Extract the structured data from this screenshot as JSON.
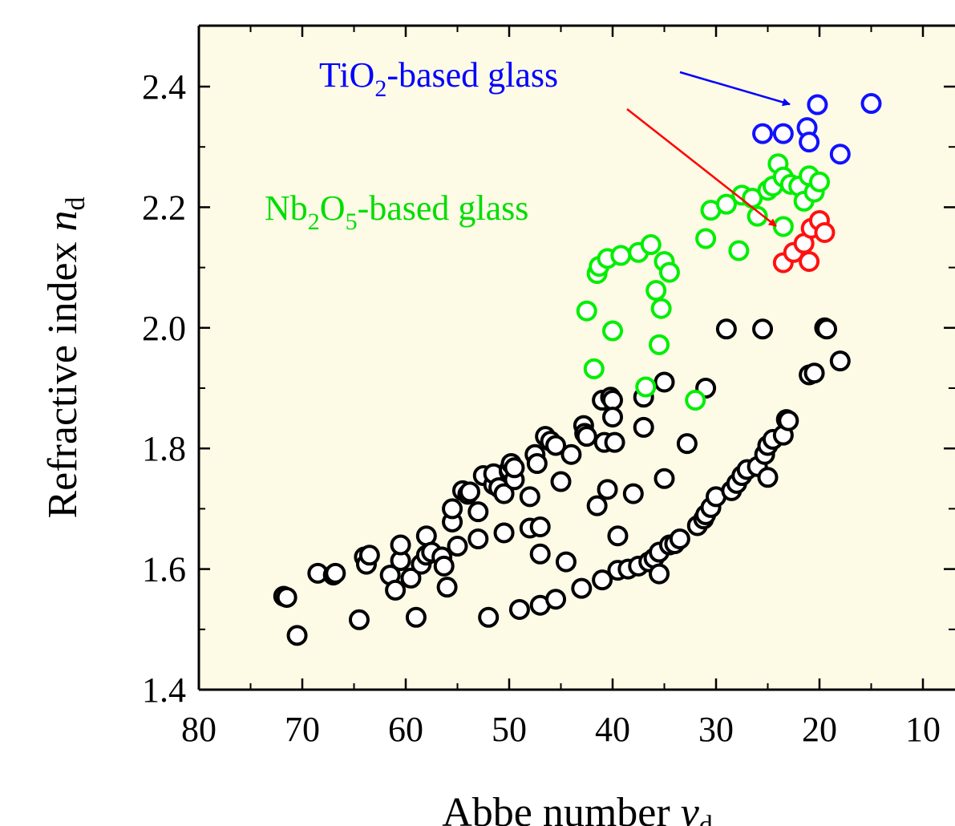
{
  "chart_data": {
    "type": "scatter",
    "title": "",
    "xlabel": {
      "main": "Abbe number ",
      "symbol": "ν",
      "sub": "d"
    },
    "ylabel": {
      "main": "Refractive index ",
      "symbol": "n",
      "sub": "d"
    },
    "xlim": [
      80,
      8
    ],
    "ylim": [
      1.4,
      2.5
    ],
    "x_reversed": true,
    "x_ticks": [
      "80",
      "70",
      "60",
      "50",
      "40",
      "30",
      "20",
      "10"
    ],
    "y_ticks": [
      "1.4",
      "1.6",
      "1.8",
      "2.0",
      "2.2",
      "2.4"
    ],
    "plot_background": "#fdfae6",
    "annotations": [
      {
        "prefix": "TiO",
        "sub": "2",
        "suffix": "-based glass",
        "color": "#0000ff"
      },
      {
        "prefix": "Nb",
        "sub": "2",
        "mid": "O",
        "sub2": "5",
        "suffix": "-based glass",
        "color": "#00dd00"
      }
    ],
    "series": [
      {
        "color": "#000000",
        "points": [
          [
            71.8,
            1.555
          ],
          [
            71.5,
            1.553
          ],
          [
            70.5,
            1.49
          ],
          [
            68.5,
            1.593
          ],
          [
            67,
            1.59
          ],
          [
            66.8,
            1.593
          ],
          [
            64.5,
            1.516
          ],
          [
            64,
            1.62
          ],
          [
            63.8,
            1.608
          ],
          [
            63.5,
            1.623
          ],
          [
            61.5,
            1.59
          ],
          [
            61,
            1.565
          ],
          [
            60.5,
            1.614
          ],
          [
            60.5,
            1.64
          ],
          [
            59.5,
            1.585
          ],
          [
            59,
            1.52
          ],
          [
            58.5,
            1.608
          ],
          [
            58,
            1.623
          ],
          [
            58,
            1.655
          ],
          [
            57.5,
            1.628
          ],
          [
            56.5,
            1.62
          ],
          [
            56.3,
            1.605
          ],
          [
            56,
            1.57
          ],
          [
            55.5,
            1.678
          ],
          [
            55.5,
            1.7
          ],
          [
            55,
            1.638
          ],
          [
            54.5,
            1.73
          ],
          [
            54,
            1.724
          ],
          [
            53.8,
            1.728
          ],
          [
            53,
            1.695
          ],
          [
            53,
            1.65
          ],
          [
            52.5,
            1.755
          ],
          [
            52,
            1.52
          ],
          [
            51.5,
            1.74
          ],
          [
            51.5,
            1.758
          ],
          [
            51,
            1.735
          ],
          [
            50.5,
            1.725
          ],
          [
            50.5,
            1.66
          ],
          [
            50,
            1.762
          ],
          [
            50,
            1.765
          ],
          [
            49.8,
            1.775
          ],
          [
            49.5,
            1.748
          ],
          [
            49.5,
            1.768
          ],
          [
            49,
            1.533
          ],
          [
            48,
            1.72
          ],
          [
            48,
            1.668
          ],
          [
            47.5,
            1.79
          ],
          [
            47.3,
            1.775
          ],
          [
            47,
            1.67
          ],
          [
            47,
            1.625
          ],
          [
            47,
            1.54
          ],
          [
            46.5,
            1.82
          ],
          [
            46,
            1.812
          ],
          [
            45.5,
            1.55
          ],
          [
            45.5,
            1.805
          ],
          [
            45,
            1.745
          ],
          [
            44.5,
            1.612
          ],
          [
            44,
            1.79
          ],
          [
            43,
            1.568
          ],
          [
            42.8,
            1.838
          ],
          [
            42.7,
            1.825
          ],
          [
            42.5,
            1.82
          ],
          [
            41.5,
            1.705
          ],
          [
            41,
            1.582
          ],
          [
            41,
            1.88
          ],
          [
            40.8,
            1.81
          ],
          [
            40.5,
            1.732
          ],
          [
            40.2,
            1.885
          ],
          [
            40,
            1.88
          ],
          [
            40,
            1.852
          ],
          [
            39.8,
            1.81
          ],
          [
            39.5,
            1.655
          ],
          [
            39.5,
            1.598
          ],
          [
            38.5,
            1.6
          ],
          [
            38,
            1.725
          ],
          [
            37.5,
            1.605
          ],
          [
            37,
            1.835
          ],
          [
            37,
            1.885
          ],
          [
            36.5,
            1.612
          ],
          [
            36,
            1.618
          ],
          [
            35.5,
            1.628
          ],
          [
            35.5,
            1.592
          ],
          [
            35,
            1.75
          ],
          [
            35,
            1.91
          ],
          [
            34.5,
            1.64
          ],
          [
            34,
            1.642
          ],
          [
            33.5,
            1.65
          ],
          [
            32.8,
            1.808
          ],
          [
            31.8,
            1.672
          ],
          [
            31.2,
            1.683
          ],
          [
            31,
            1.69
          ],
          [
            31,
            1.9
          ],
          [
            30.5,
            1.702
          ],
          [
            30,
            1.72
          ],
          [
            29,
            1.998
          ],
          [
            28.5,
            1.73
          ],
          [
            28,
            1.742
          ],
          [
            27.5,
            1.755
          ],
          [
            27,
            1.765
          ],
          [
            26,
            1.77
          ],
          [
            25.5,
            1.998
          ],
          [
            25.3,
            1.79
          ],
          [
            25,
            1.805
          ],
          [
            25,
            1.752
          ],
          [
            24.5,
            1.815
          ],
          [
            23.5,
            1.822
          ],
          [
            23.2,
            1.848
          ],
          [
            23,
            1.846
          ],
          [
            21,
            1.922
          ],
          [
            20.5,
            1.925
          ],
          [
            19.5,
            2.0
          ],
          [
            19.3,
            1.998
          ],
          [
            18,
            1.945
          ]
        ]
      },
      {
        "color": "#00ee00",
        "points": [
          [
            42.5,
            2.028
          ],
          [
            41.8,
            1.932
          ],
          [
            41.5,
            2.09
          ],
          [
            41.3,
            2.102
          ],
          [
            40.5,
            2.115
          ],
          [
            40,
            1.995
          ],
          [
            39.2,
            2.12
          ],
          [
            37.5,
            2.125
          ],
          [
            36.8,
            1.902
          ],
          [
            36.3,
            2.138
          ],
          [
            35.8,
            2.062
          ],
          [
            35.5,
            1.972
          ],
          [
            35.3,
            2.032
          ],
          [
            35,
            2.11
          ],
          [
            34.5,
            2.092
          ],
          [
            32,
            1.88
          ],
          [
            31,
            2.148
          ],
          [
            30.5,
            2.195
          ],
          [
            29,
            2.205
          ],
          [
            27.8,
            2.128
          ],
          [
            27.5,
            2.22
          ],
          [
            26.5,
            2.215
          ],
          [
            26,
            2.185
          ],
          [
            25,
            2.228
          ],
          [
            24.5,
            2.235
          ],
          [
            24,
            2.272
          ],
          [
            23.5,
            2.25
          ],
          [
            23.5,
            2.168
          ],
          [
            22.8,
            2.238
          ],
          [
            22,
            2.235
          ],
          [
            21.5,
            2.21
          ],
          [
            21,
            2.252
          ],
          [
            20.5,
            2.225
          ],
          [
            20,
            2.242
          ]
        ]
      },
      {
        "color": "#ff1111",
        "points": [
          [
            23.5,
            2.108
          ],
          [
            22.5,
            2.125
          ],
          [
            21.5,
            2.14
          ],
          [
            21,
            2.11
          ],
          [
            20.8,
            2.165
          ],
          [
            20,
            2.178
          ],
          [
            19.5,
            2.158
          ]
        ]
      },
      {
        "color": "#1111ff",
        "points": [
          [
            25.5,
            2.322
          ],
          [
            23.5,
            2.322
          ],
          [
            21.2,
            2.332
          ],
          [
            21,
            2.308
          ],
          [
            20.2,
            2.37
          ],
          [
            18,
            2.288
          ],
          [
            15,
            2.372
          ]
        ]
      }
    ]
  }
}
